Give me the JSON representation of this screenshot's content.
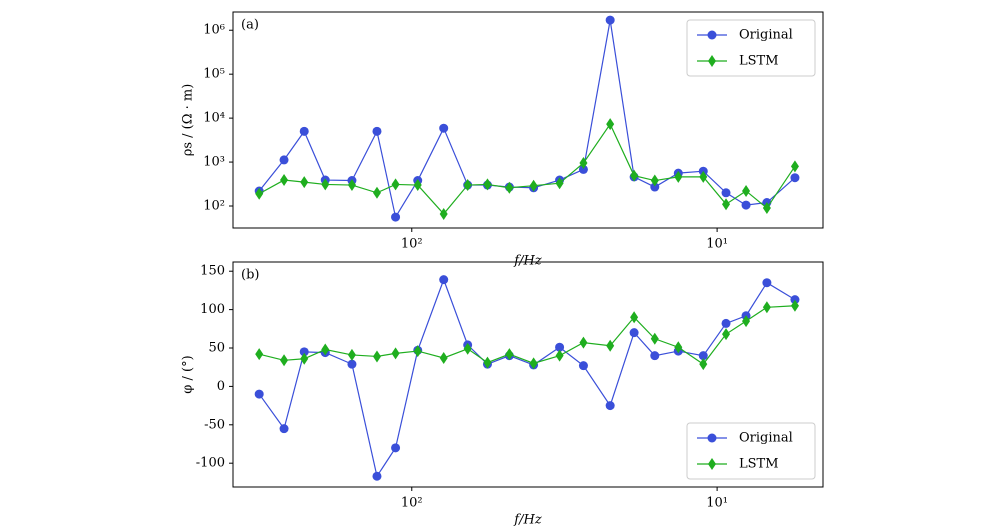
{
  "chart_data": [
    {
      "type": "line",
      "annotation": "(a)",
      "xlabel": "f/Hz",
      "ylabel": "ρs / (Ω · m)",
      "xscale": "log",
      "yscale": "log",
      "xlim": [
        385,
        4.5
      ],
      "ylim": [
        31.6,
        2600000
      ],
      "xticks": [
        {
          "value": 100,
          "label": "10²"
        },
        {
          "value": 10,
          "label": "10¹"
        }
      ],
      "yticks": [
        {
          "value": 100,
          "label": "10²"
        },
        {
          "value": 1000,
          "label": "10³"
        },
        {
          "value": 10000,
          "label": "10⁴"
        },
        {
          "value": 100000,
          "label": "10⁵"
        },
        {
          "value": 1000000,
          "label": "10⁶"
        }
      ],
      "legend": "upper right",
      "x": [
        316,
        262,
        225,
        192,
        157,
        130,
        113,
        95.6,
        78.6,
        65.6,
        56.5,
        47.9,
        39.9,
        32.8,
        27.4,
        22.4,
        18.7,
        16.0,
        13.4,
        11.1,
        9.35,
        8.04,
        6.87,
        5.56
      ],
      "series": [
        {
          "name": "Original",
          "color": "#3a4fd9",
          "marker": "circle",
          "values": [
            219,
            1120,
            5000,
            390,
            380,
            5000,
            56,
            380,
            5900,
            300,
            300,
            270,
            260,
            390,
            680,
            1700000,
            460,
            270,
            560,
            620,
            200,
            105,
            120,
            440
          ]
        },
        {
          "name": "LSTM",
          "color": "#1fae1f",
          "marker": "diamond",
          "values": [
            190,
            390,
            350,
            310,
            300,
            200,
            310,
            300,
            66,
            300,
            310,
            260,
            290,
            330,
            950,
            7300,
            490,
            380,
            460,
            460,
            110,
            220,
            90,
            800
          ]
        }
      ]
    },
    {
      "type": "line",
      "annotation": "(b)",
      "xlabel": "f/Hz",
      "ylabel": "φ / (°)",
      "xscale": "log",
      "xlim": [
        385,
        4.5
      ],
      "ylim": [
        -131,
        162
      ],
      "xticks": [
        {
          "value": 100,
          "label": "10²"
        },
        {
          "value": 10,
          "label": "10¹"
        }
      ],
      "yticks": [
        -100,
        -50,
        0,
        50,
        100,
        150
      ],
      "legend": "lower right",
      "x": [
        316,
        262,
        225,
        192,
        157,
        130,
        113,
        95.6,
        78.6,
        65.6,
        56.5,
        47.9,
        39.9,
        32.8,
        27.4,
        22.4,
        18.7,
        16.0,
        13.4,
        11.1,
        9.35,
        8.04,
        6.87,
        5.56
      ],
      "series": [
        {
          "name": "Original",
          "color": "#3a4fd9",
          "marker": "circle",
          "values": [
            -10,
            -55,
            45,
            44,
            29,
            -117,
            -80,
            47,
            139,
            54,
            29,
            40,
            28,
            51,
            27,
            -25,
            70,
            40,
            46,
            40,
            82,
            92,
            135,
            113
          ]
        },
        {
          "name": "LSTM",
          "color": "#1fae1f",
          "marker": "diamond",
          "values": [
            42,
            34,
            36,
            48,
            41,
            39,
            43,
            46,
            37,
            49,
            31,
            42,
            30,
            40,
            57,
            53,
            90,
            62,
            51,
            29,
            68,
            85,
            103,
            105
          ]
        }
      ]
    }
  ]
}
